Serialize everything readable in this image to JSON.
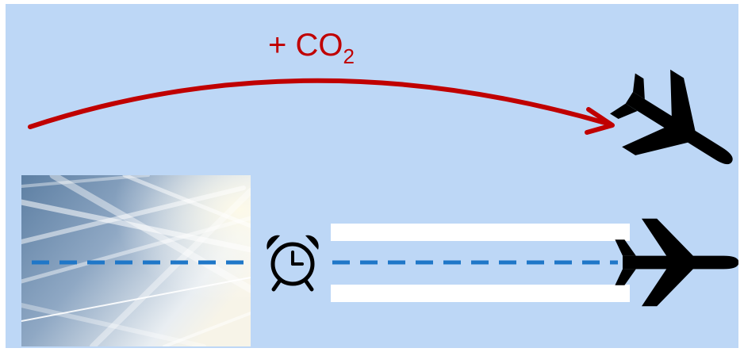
{
  "diagram": {
    "top_label": {
      "prefix": "+ CO",
      "subscript": "2"
    },
    "colors": {
      "background": "#bdd7f6",
      "arc": "#c00000",
      "dashed_line": "#1f77c8",
      "contrail_bars": "#ffffff",
      "plane": "#000000"
    },
    "icons": {
      "top_plane": "airplane-icon",
      "bottom_plane": "airplane-icon",
      "clock": "alarm-clock-icon",
      "photo": "contrail-sky-photo"
    }
  }
}
